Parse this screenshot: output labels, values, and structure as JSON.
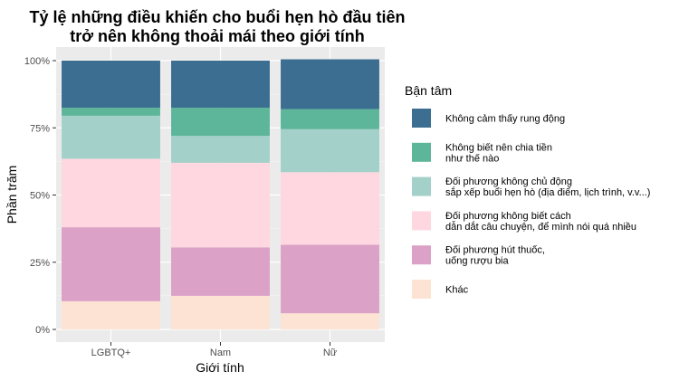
{
  "chart_data": {
    "type": "bar",
    "stacked": true,
    "title_lines": [
      "Tỷ lệ những điều khiến cho buổi hẹn hò đầu tiên",
      "trở nên không thoải mái theo giới tính"
    ],
    "xlabel": "Giới tính",
    "ylabel": "Phần trăm",
    "ylim": [
      0,
      100
    ],
    "y_ticks": [
      0,
      25,
      50,
      75,
      100
    ],
    "y_tick_labels": [
      "0%",
      "25%",
      "50%",
      "75%",
      "100%"
    ],
    "categories": [
      "LGBTQ+",
      "Nam",
      "Nữ"
    ],
    "grid": true,
    "legend_position": "right",
    "legend_title": "Bận tâm",
    "series": [
      {
        "name": "Khác",
        "label_lines": [
          "Khác"
        ],
        "color": "#fde3d3",
        "values": [
          10.5,
          12.5,
          6
        ]
      },
      {
        "name": "Đối phương hút thuốc, uống rượu bia",
        "label_lines": [
          "Đối phương hút thuốc,",
          "uống rượu bia"
        ],
        "color": "#dba1c7",
        "values": [
          27.5,
          18,
          25.5
        ]
      },
      {
        "name": "Đối phương không biết cách dẫn dắt câu chuyện, để mình nói quá nhiều",
        "label_lines": [
          "Đối phương không biết cách",
          "dẫn dắt câu chuyện, để mình nói quá nhiều"
        ],
        "color": "#fed7e1",
        "values": [
          25.5,
          31.5,
          27
        ]
      },
      {
        "name": "Đối phương không chủ động sắp xếp buổi hẹn hò (địa điểm, lịch trình, v.v...)",
        "label_lines": [
          "Đối phương không chủ động",
          "sắp xếp buổi hẹn hò (địa điểm, lịch trình, v.v...)"
        ],
        "color": "#a4d0ca",
        "values": [
          16,
          10,
          16
        ]
      },
      {
        "name": "Không biết nên chia tiền như thế nào",
        "label_lines": [
          "Không biết nên chia tiền",
          "như thế nào"
        ],
        "color": "#5db59a",
        "values": [
          3,
          10.5,
          7.5
        ]
      },
      {
        "name": "Không cảm thấy rung động",
        "label_lines": [
          "Không cảm thấy rung động"
        ],
        "color": "#3c6e91",
        "values": [
          17.5,
          17.5,
          18.5
        ]
      }
    ]
  }
}
